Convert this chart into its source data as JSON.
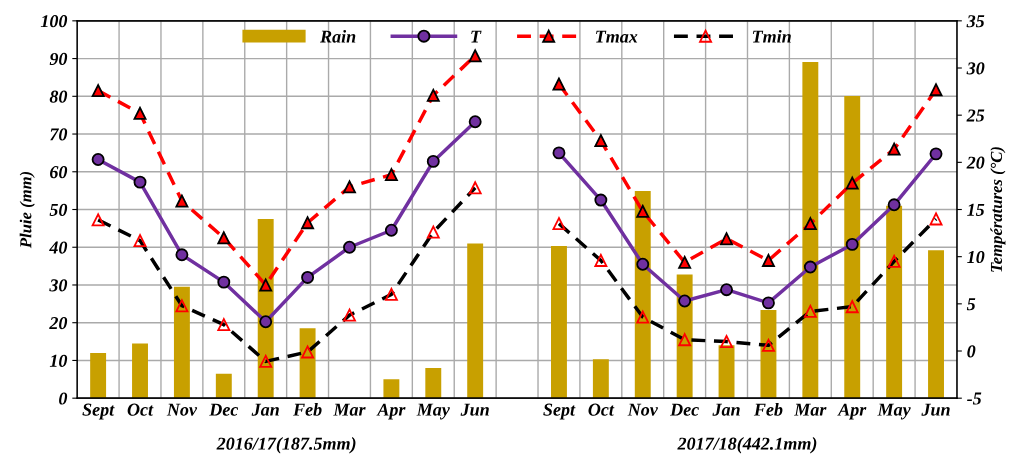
{
  "chart_data": {
    "type": "bar",
    "ylabel": "Pluie (mm)",
    "y2label": "Températures (°C)",
    "categories": [
      "Sept",
      "Oct",
      "Nov",
      "Dec",
      "Jan",
      "Feb",
      "Mar",
      "Apr",
      "May",
      "Jun",
      null,
      "Sept",
      "Oct",
      "Nov",
      "Dec",
      "Jan",
      "Feb",
      "Mar",
      "Apr",
      "May",
      "Jun"
    ],
    "series": [
      {
        "name": "Rain",
        "color": "#c8a000",
        "values": [
          12,
          14.5,
          29.5,
          6.5,
          47.5,
          18.5,
          0,
          5,
          8,
          41,
          null,
          40.3,
          10.3,
          54.9,
          32.8,
          14,
          23.4,
          89.1,
          80.1,
          51,
          39.2
        ]
      },
      {
        "name": "T",
        "type": "line",
        "axis": "y2",
        "color": "#7030a0",
        "marker": "circle",
        "line_style": "solid",
        "values": [
          20.3,
          17.9,
          10.2,
          7.3,
          3.1,
          7.8,
          11.0,
          12.8,
          20.1,
          24.3,
          null,
          21.0,
          16.0,
          9.2,
          5.3,
          6.5,
          5.1,
          8.9,
          11.3,
          15.5,
          20.9
        ]
      },
      {
        "name": "Tmax",
        "type": "line",
        "axis": "y2",
        "color": "#ff0000",
        "marker": "triangle",
        "line_style": "dashed",
        "values": [
          27.6,
          25.2,
          15.9,
          12.0,
          7.0,
          13.6,
          17.4,
          18.7,
          27.1,
          31.3,
          null,
          28.3,
          22.3,
          14.8,
          9.4,
          11.9,
          9.6,
          13.5,
          17.8,
          21.4,
          27.7
        ]
      },
      {
        "name": "Tmin",
        "type": "line",
        "axis": "y2",
        "color": "#000000",
        "marker": "triangle",
        "line_style": "dashed",
        "values": [
          13.9,
          11.7,
          4.8,
          2.8,
          -1.1,
          -0.1,
          3.8,
          6.0,
          12.6,
          17.3,
          null,
          13.5,
          9.6,
          3.6,
          1.2,
          1.0,
          0.6,
          4.2,
          4.7,
          9.5,
          14.0
        ]
      }
    ],
    "ylim": [
      0,
      100
    ],
    "yticks": [
      0,
      10,
      20,
      30,
      40,
      50,
      60,
      70,
      80,
      90,
      100
    ],
    "y2lim": [
      -5,
      35
    ],
    "y2ticks": [
      -5,
      0,
      5,
      10,
      15,
      20,
      25,
      30,
      35
    ],
    "annotations": [
      "2016/17(187.5mm)",
      "2017/18(442.1mm)"
    ],
    "grid": true,
    "legend": "top"
  }
}
